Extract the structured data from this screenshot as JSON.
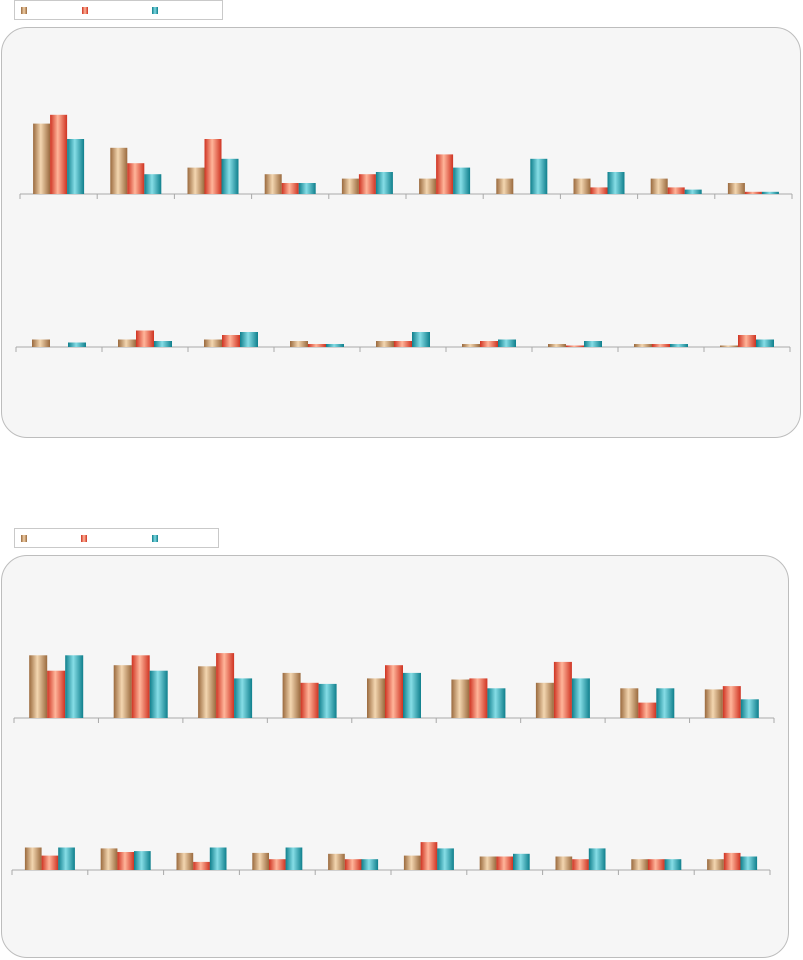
{
  "colors": {
    "series_0": "#c99a6e",
    "series_1": "#ee5a3c",
    "series_2": "#1ba3b0"
  },
  "chart_data": [
    {
      "type": "bar",
      "categories": [
        "",
        "",
        "",
        "",
        "",
        "",
        "",
        "",
        "",
        ""
      ],
      "series": [
        {
          "values": [
            32,
            21,
            12,
            9,
            7,
            7,
            7,
            7,
            7,
            5
          ]
        },
        {
          "values": [
            36,
            14,
            25,
            5,
            9,
            18,
            0,
            3,
            3,
            1
          ]
        },
        {
          "values": [
            25,
            9,
            16,
            5,
            10,
            12,
            16,
            10,
            2,
            1
          ]
        }
      ],
      "ylim": [
        0,
        60
      ],
      "grid": false,
      "legend": "top-left"
    },
    {
      "type": "bar",
      "categories": [
        "",
        "",
        "",
        "",
        "",
        "",
        "",
        "",
        ""
      ],
      "series": [
        {
          "values": [
            5,
            5,
            5,
            4,
            4,
            2,
            2,
            2,
            1
          ]
        },
        {
          "values": [
            0,
            11,
            8,
            2,
            4,
            4,
            1,
            2,
            8
          ]
        },
        {
          "values": [
            3,
            4,
            10,
            2,
            10,
            5,
            4,
            2,
            5
          ]
        }
      ],
      "ylim": [
        0,
        60
      ],
      "grid": false
    },
    {
      "type": "bar",
      "categories": [
        "",
        "",
        "",
        "",
        "",
        "",
        "",
        "",
        ""
      ],
      "series": [
        {
          "values": [
            57,
            48,
            47,
            41,
            36,
            35,
            32,
            27,
            26
          ]
        },
        {
          "values": [
            43,
            57,
            59,
            32,
            48,
            36,
            51,
            14,
            29
          ]
        },
        {
          "values": [
            57,
            43,
            36,
            31,
            41,
            27,
            36,
            27,
            17
          ]
        }
      ],
      "ylim": [
        0,
        100
      ],
      "grid": false,
      "legend": "top-left"
    },
    {
      "type": "bar",
      "categories": [
        "",
        "",
        "",
        "",
        "",
        "",
        "",
        "",
        "",
        ""
      ],
      "series": [
        {
          "values": [
            25,
            24,
            19,
            19,
            18,
            16,
            15,
            15,
            12,
            12
          ]
        },
        {
          "values": [
            16,
            20,
            9,
            12,
            12,
            31,
            15,
            12,
            12,
            19
          ]
        },
        {
          "values": [
            25,
            21,
            25,
            25,
            12,
            24,
            18,
            24,
            12,
            15
          ]
        }
      ],
      "ylim": [
        0,
        100
      ],
      "grid": false
    }
  ]
}
